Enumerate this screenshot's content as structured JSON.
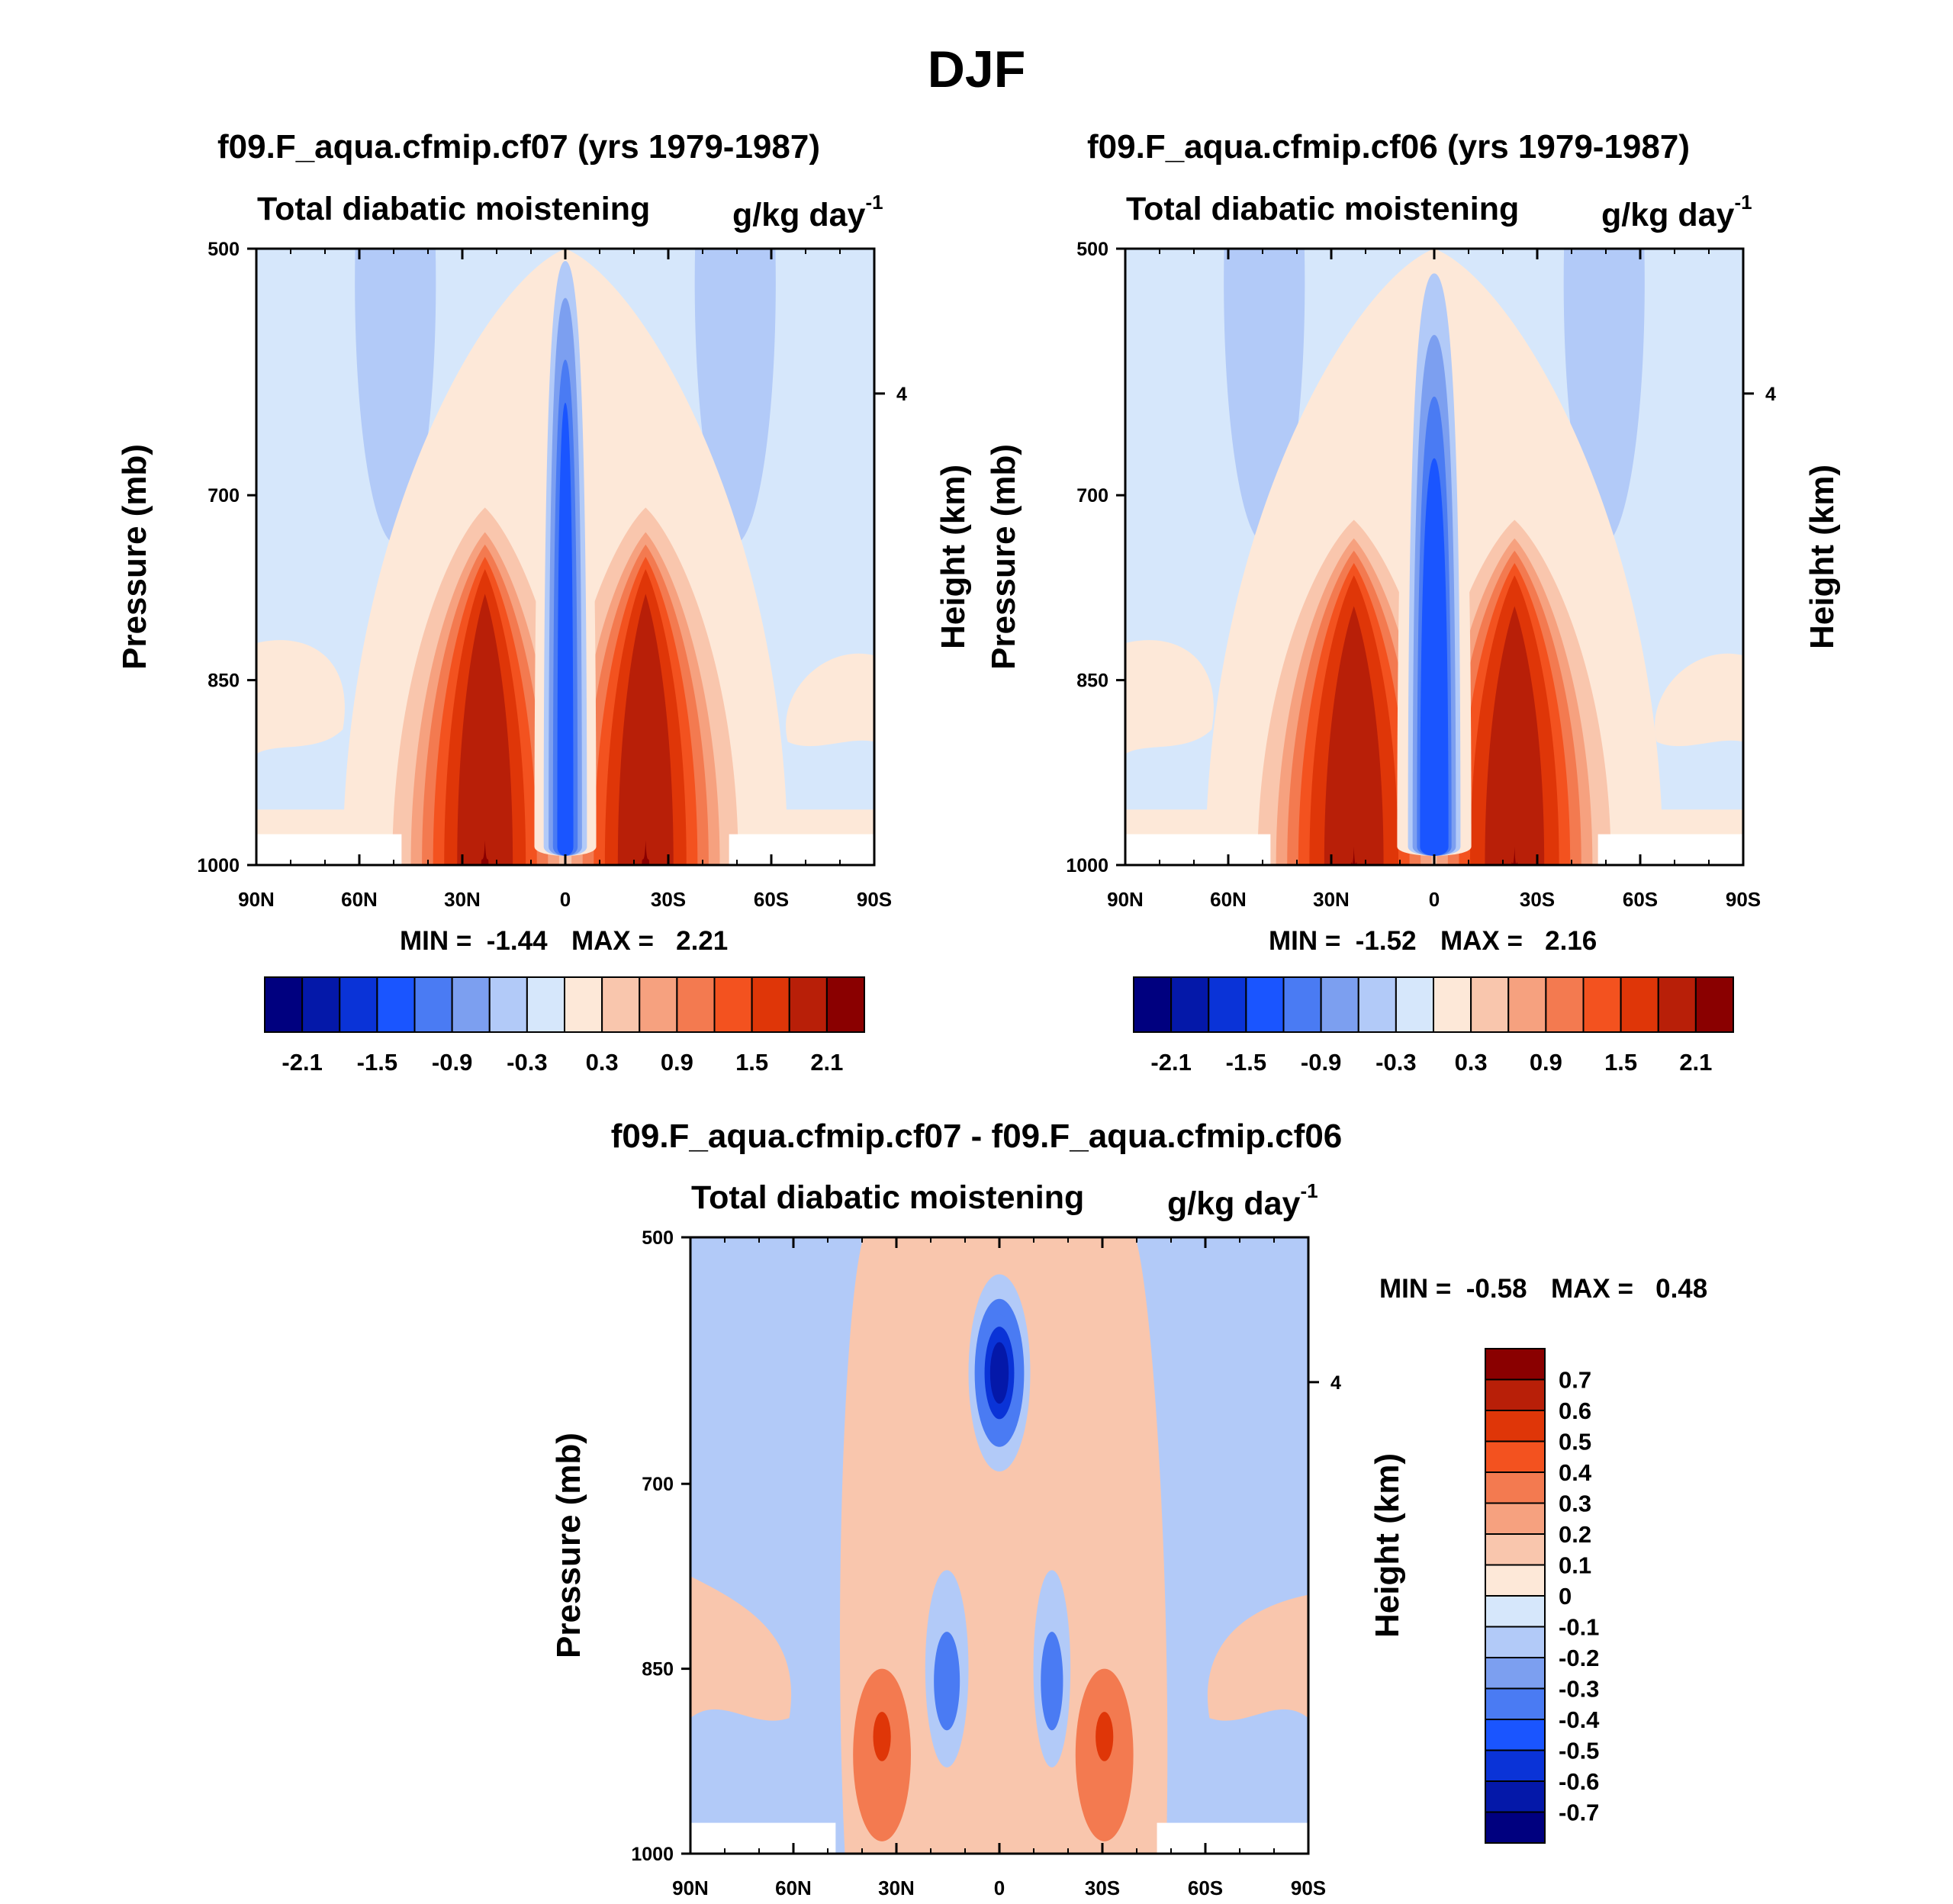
{
  "page_title": "DJF",
  "colors": {
    "levels_blue": [
      "#00007f",
      "#0418a9",
      "#0a33d7",
      "#1a55ff",
      "#4a7bf3",
      "#7c9ff0",
      "#b2caf8",
      "#d6e7fb"
    ],
    "levels_red": [
      "#fde8d8",
      "#f9c6ad",
      "#f6a17f",
      "#f37a50",
      "#f3521f",
      "#df3608",
      "#b81f08",
      "#8a0000"
    ]
  },
  "chart_data": [
    {
      "type": "contour",
      "title": "f09.F_aqua.cfmip.cf07 (yrs 1979-1987)",
      "variable": "Total diabatic moistening",
      "units_base": "g/kg day",
      "units_exp": "-1",
      "ylabel": "Pressure (mb)",
      "y2label": "Height (km)",
      "yticks": [
        "500",
        "700",
        "850",
        "1000"
      ],
      "y2ticks": [
        "4"
      ],
      "xticks": [
        "90N",
        "60N",
        "30N",
        "0",
        "30S",
        "60S",
        "90S"
      ],
      "min_text": "MIN =  -1.44",
      "max_text": "MAX =   2.21",
      "min": -1.44,
      "max": 2.21,
      "colorbar_labels": [
        "-2.1",
        "-1.5",
        "-0.9",
        "-0.3",
        "0.3",
        "0.9",
        "1.5",
        "2.1"
      ],
      "bands": [
        {
          "level": 0.0,
          "w": 0.36,
          "y": 0.8,
          "o": -1
        },
        {
          "level": 0.3,
          "w": 0.25,
          "y": 0.58,
          "o": 0
        },
        {
          "level": 0.6,
          "w": 0.2,
          "y": 0.54,
          "o": 1
        },
        {
          "level": 0.9,
          "w": 0.17,
          "y": 0.52,
          "o": 2
        },
        {
          "level": 1.2,
          "w": 0.14,
          "y": 0.5,
          "o": 3
        },
        {
          "level": 1.5,
          "w": 0.11,
          "y": 0.48,
          "o": 4
        },
        {
          "level": 1.8,
          "w": 0.075,
          "y": 0.44,
          "o": 5
        },
        {
          "level": 2.1,
          "w": 0.01,
          "y": 0.04,
          "o": 6
        }
      ],
      "equator_bands": [
        {
          "level": 0.0,
          "w": 0.1,
          "y": 1.0
        },
        {
          "level": -0.3,
          "w": 0.07,
          "y": 0.98
        },
        {
          "level": -0.6,
          "w": 0.054,
          "y": 0.92
        },
        {
          "level": -0.9,
          "w": 0.04,
          "y": 0.82
        },
        {
          "level": -1.2,
          "w": 0.026,
          "y": 0.75
        }
      ]
    },
    {
      "type": "contour",
      "title": "f09.F_aqua.cfmip.cf06 (yrs 1979-1987)",
      "variable": "Total diabatic moistening",
      "units_base": "g/kg day",
      "units_exp": "-1",
      "ylabel": "Pressure (mb)",
      "y2label": "Height (km)",
      "yticks": [
        "500",
        "700",
        "850",
        "1000"
      ],
      "y2ticks": [
        "4"
      ],
      "xticks": [
        "90N",
        "60N",
        "30N",
        "0",
        "30S",
        "60S",
        "90S"
      ],
      "min_text": "MIN =  -1.52",
      "max_text": "MAX =   2.16",
      "min": -1.52,
      "max": 2.16,
      "colorbar_labels": [
        "-2.1",
        "-1.5",
        "-0.9",
        "-0.3",
        "0.3",
        "0.9",
        "1.5",
        "2.1"
      ],
      "bands": [
        {
          "level": 0.0,
          "w": 0.37,
          "y": 0.8,
          "o": -1
        },
        {
          "level": 0.3,
          "w": 0.26,
          "y": 0.56,
          "o": 0
        },
        {
          "level": 0.6,
          "w": 0.21,
          "y": 0.53,
          "o": 1
        },
        {
          "level": 0.9,
          "w": 0.18,
          "y": 0.51,
          "o": 2
        },
        {
          "level": 1.2,
          "w": 0.15,
          "y": 0.49,
          "o": 3
        },
        {
          "level": 1.5,
          "w": 0.12,
          "y": 0.47,
          "o": 4
        },
        {
          "level": 1.8,
          "w": 0.08,
          "y": 0.42,
          "o": 5
        },
        {
          "level": 2.1,
          "w": 0.008,
          "y": 0.03,
          "o": 6
        }
      ],
      "equator_bands": [
        {
          "level": 0.0,
          "w": 0.12,
          "y": 1.0
        },
        {
          "level": -0.3,
          "w": 0.085,
          "y": 0.96
        },
        {
          "level": -0.6,
          "w": 0.07,
          "y": 0.86
        },
        {
          "level": -0.9,
          "w": 0.056,
          "y": 0.76
        },
        {
          "level": -1.2,
          "w": 0.046,
          "y": 0.66
        }
      ]
    },
    {
      "type": "contour",
      "title": "f09.F_aqua.cfmip.cf07 - f09.F_aqua.cfmip.cf06",
      "variable": "Total diabatic moistening",
      "units_base": "g/kg day",
      "units_exp": "-1",
      "ylabel": "Pressure (mb)",
      "y2label": "Height (km)",
      "yticks": [
        "500",
        "700",
        "850",
        "1000"
      ],
      "y2ticks": [
        "4"
      ],
      "xticks": [
        "90N",
        "60N",
        "30N",
        "0",
        "30S",
        "60S",
        "90S"
      ],
      "min_text": "MIN =  -0.58",
      "max_text": "MAX =   0.48",
      "min": -0.58,
      "max": 0.48,
      "colorbar_labels": [
        "0.7",
        "0.6",
        "0.5",
        "0.4",
        "0.3",
        "0.2",
        "0.1",
        "0",
        "-0.1",
        "-0.2",
        "-0.3",
        "-0.4",
        "-0.5",
        "-0.6",
        "-0.7"
      ]
    }
  ]
}
